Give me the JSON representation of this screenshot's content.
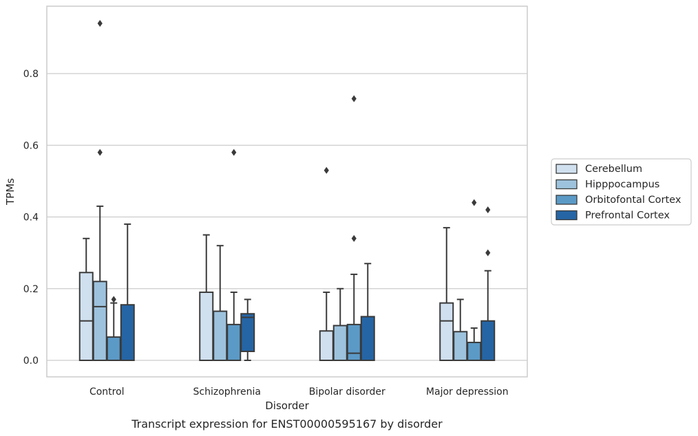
{
  "chart_data": {
    "type": "box",
    "title": "",
    "xlabel": "Disorder",
    "ylabel": "TPMs",
    "caption": "Transcript expression for ENST00000595167 by disorder",
    "ylim": [
      -0.045,
      0.99
    ],
    "yticks": [
      0.0,
      0.2,
      0.4,
      0.6,
      0.8
    ],
    "ytick_labels": [
      "0.0",
      "0.2",
      "0.4",
      "0.6",
      "0.8"
    ],
    "grid": "horizontal",
    "legend_position": "right",
    "categories": [
      "Control",
      "Schizophrenia",
      "Bipolar disorder",
      "Major depression"
    ],
    "series": [
      {
        "name": "Cerebellum",
        "color": "#d0e0ef",
        "boxes": [
          {
            "whislo": 0.0,
            "q1": 0.0,
            "med": 0.11,
            "q3": 0.245,
            "whishi": 0.34,
            "fliers": []
          },
          {
            "whislo": 0.0,
            "q1": 0.0,
            "med": 0.0,
            "q3": 0.19,
            "whishi": 0.35,
            "fliers": []
          },
          {
            "whislo": 0.0,
            "q1": 0.0,
            "med": 0.0,
            "q3": 0.082,
            "whishi": 0.19,
            "fliers": [
              0.53
            ]
          },
          {
            "whislo": 0.0,
            "q1": 0.0,
            "med": 0.11,
            "q3": 0.16,
            "whishi": 0.37,
            "fliers": []
          }
        ]
      },
      {
        "name": "Hipppocampus",
        "color": "#9dc2dd",
        "boxes": [
          {
            "whislo": 0.0,
            "q1": 0.0,
            "med": 0.15,
            "q3": 0.22,
            "whishi": 0.43,
            "fliers": [
              0.58,
              0.94
            ]
          },
          {
            "whislo": 0.0,
            "q1": 0.0,
            "med": 0.0,
            "q3": 0.137,
            "whishi": 0.32,
            "fliers": []
          },
          {
            "whislo": 0.0,
            "q1": 0.0,
            "med": 0.0,
            "q3": 0.097,
            "whishi": 0.2,
            "fliers": []
          },
          {
            "whislo": 0.0,
            "q1": 0.0,
            "med": 0.0,
            "q3": 0.08,
            "whishi": 0.17,
            "fliers": []
          }
        ]
      },
      {
        "name": "Orbitofontal Cortex",
        "color": "#5b9ac7",
        "boxes": [
          {
            "whislo": 0.0,
            "q1": 0.0,
            "med": 0.0,
            "q3": 0.065,
            "whishi": 0.16,
            "fliers": [
              0.17
            ]
          },
          {
            "whislo": 0.0,
            "q1": 0.0,
            "med": 0.0,
            "q3": 0.1,
            "whishi": 0.19,
            "fliers": [
              0.58
            ]
          },
          {
            "whislo": 0.0,
            "q1": 0.0,
            "med": 0.02,
            "q3": 0.1,
            "whishi": 0.24,
            "fliers": [
              0.34,
              0.73
            ]
          },
          {
            "whislo": 0.0,
            "q1": 0.0,
            "med": 0.0,
            "q3": 0.05,
            "whishi": 0.09,
            "fliers": [
              0.44
            ]
          }
        ]
      },
      {
        "name": "Prefrontal Cortex",
        "color": "#2565a5",
        "boxes": [
          {
            "whislo": 0.0,
            "q1": 0.0,
            "med": 0.0,
            "q3": 0.155,
            "whishi": 0.38,
            "fliers": []
          },
          {
            "whislo": 0.0,
            "q1": 0.025,
            "med": 0.12,
            "q3": 0.13,
            "whishi": 0.17,
            "fliers": []
          },
          {
            "whislo": 0.0,
            "q1": 0.0,
            "med": 0.0,
            "q3": 0.122,
            "whishi": 0.27,
            "fliers": []
          },
          {
            "whislo": 0.0,
            "q1": 0.0,
            "med": 0.0,
            "q3": 0.11,
            "whishi": 0.25,
            "fliers": [
              0.3,
              0.42
            ]
          }
        ]
      }
    ]
  }
}
